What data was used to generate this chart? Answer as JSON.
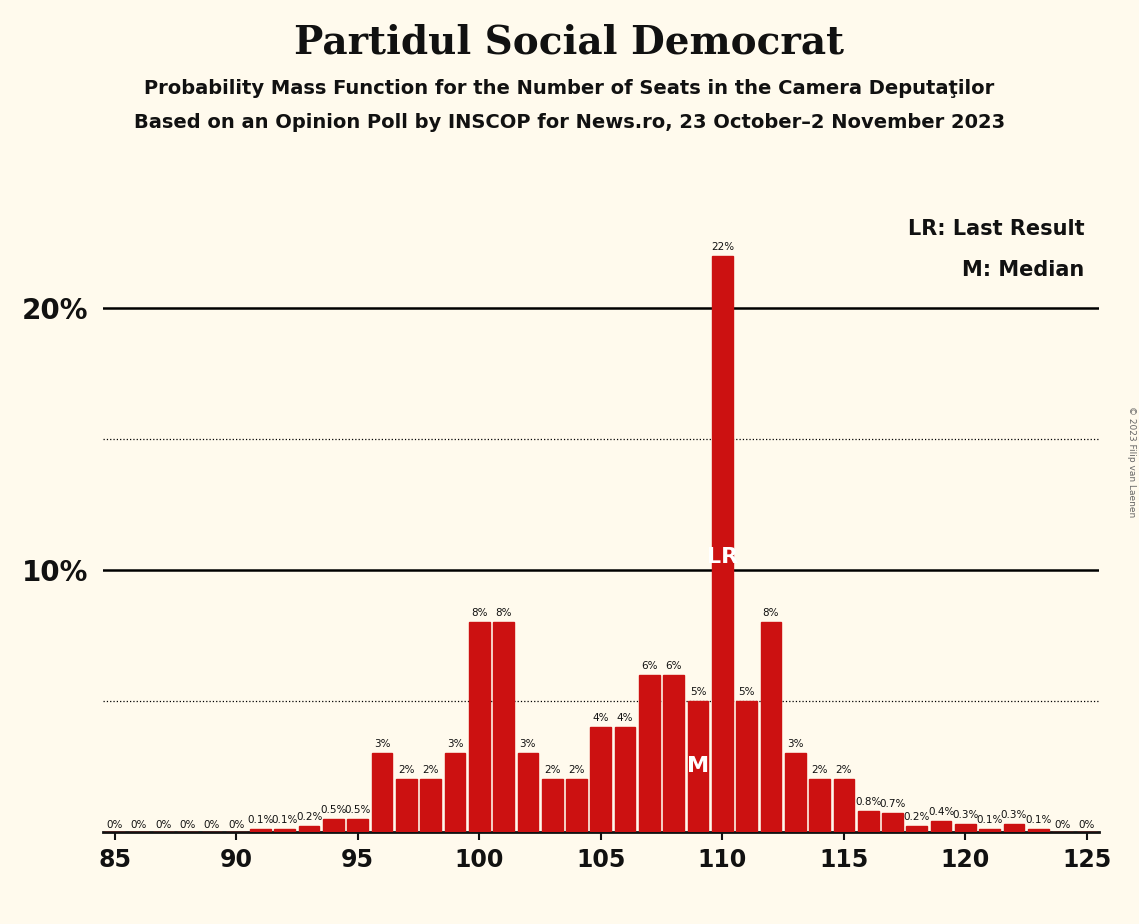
{
  "title": "Partidul Social Democrat",
  "subtitle1": "Probability Mass Function for the Number of Seats in the Camera Deputaţilor",
  "subtitle2": "Based on an Opinion Poll by INSCOP for News.ro, 23 October–2 November 2023",
  "copyright": "© 2023 Filip van Laenen",
  "seats": [
    85,
    86,
    87,
    88,
    89,
    90,
    91,
    92,
    93,
    94,
    95,
    96,
    97,
    98,
    99,
    100,
    101,
    102,
    103,
    104,
    105,
    106,
    107,
    108,
    109,
    110,
    111,
    112,
    113,
    114,
    115,
    116,
    117,
    118,
    119,
    120,
    121,
    122,
    123,
    124,
    125
  ],
  "values": [
    0.0,
    0.0,
    0.0,
    0.0,
    0.0,
    0.0,
    0.1,
    0.1,
    0.2,
    0.5,
    0.5,
    3.0,
    2.0,
    2.0,
    3.0,
    8.0,
    8.0,
    3.0,
    2.0,
    2.0,
    4.0,
    4.0,
    6.0,
    6.0,
    5.0,
    22.0,
    5.0,
    8.0,
    3.0,
    2.0,
    2.0,
    0.8,
    0.7,
    0.2,
    0.4,
    0.3,
    0.1,
    0.3,
    0.1,
    0.0,
    0.0
  ],
  "labels": [
    "0%",
    "0%",
    "0%",
    "0%",
    "0%",
    "0%",
    "0.1%",
    "0.1%",
    "0.2%",
    "0.5%",
    "0.5%",
    "3%",
    "2%",
    "2%",
    "3%",
    "8%",
    "8%",
    "3%",
    "2%",
    "2%",
    "4%",
    "4%",
    "6%",
    "6%",
    "5%",
    "22%",
    "5%",
    "8%",
    "3%",
    "2%",
    "2%",
    "0.8%",
    "0.7%",
    "0.2%",
    "0.4%",
    "0.3%",
    "0.1%",
    "0.3%",
    "0.1%",
    "0%",
    "0%"
  ],
  "bar_color": "#cc1111",
  "background_color": "#fffaed",
  "median_seat": 109,
  "lr_seat": 110,
  "xlim_low": 84.5,
  "xlim_high": 125.5,
  "ylim_high": 24,
  "xticks": [
    85,
    90,
    95,
    100,
    105,
    110,
    115,
    120,
    125
  ],
  "ytick_positions": [
    10,
    20
  ],
  "ytick_labels": [
    "10%",
    "20%"
  ],
  "dotted_lines": [
    5.0,
    15.0
  ],
  "solid_lines": [
    10.0,
    20.0
  ],
  "legend_lr": "LR: Last Result",
  "legend_m": "M: Median",
  "text_color": "#111111",
  "label_fontsize": 7.5,
  "title_fontsize": 28,
  "subtitle_fontsize": 14,
  "axis_tick_fontsize": 17,
  "ytick_fontsize": 20,
  "legend_fontsize": 15
}
